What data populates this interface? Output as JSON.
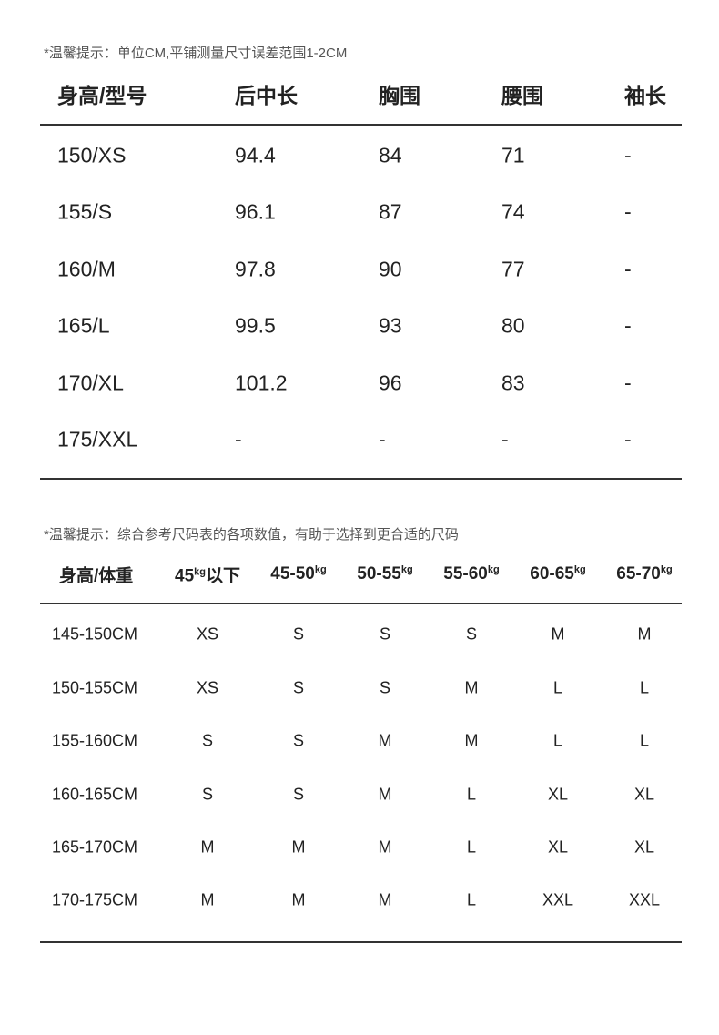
{
  "table1": {
    "note": "*温馨提示：单位CM,平铺测量尺寸误差范围1-2CM",
    "headers": [
      "身高/型号",
      "后中长",
      "胸围",
      "腰围",
      "袖长"
    ],
    "rows": [
      [
        "150/XS",
        "94.4",
        "84",
        "71",
        "-"
      ],
      [
        "155/S",
        "96.1",
        "87",
        "74",
        "-"
      ],
      [
        "160/M",
        "97.8",
        "90",
        "77",
        "-"
      ],
      [
        "165/L",
        "99.5",
        "93",
        "80",
        "-"
      ],
      [
        "170/XL",
        "101.2",
        "96",
        "83",
        "-"
      ],
      [
        "175/XXL",
        "-",
        "-",
        "-",
        "-"
      ]
    ]
  },
  "table2": {
    "note": "*温馨提示：综合参考尺码表的各项数值，有助于选择到更合适的尺码",
    "headers": [
      {
        "main": "身高/体重",
        "unit": "",
        "suffix": ""
      },
      {
        "main": "45",
        "unit": "kg",
        "suffix": "以下"
      },
      {
        "main": "45-50",
        "unit": "kg",
        "suffix": ""
      },
      {
        "main": "50-55",
        "unit": "kg",
        "suffix": ""
      },
      {
        "main": "55-60",
        "unit": "kg",
        "suffix": ""
      },
      {
        "main": "60-65",
        "unit": "kg",
        "suffix": ""
      },
      {
        "main": "65-70",
        "unit": "kg",
        "suffix": ""
      }
    ],
    "rows": [
      [
        "145-150CM",
        "XS",
        "S",
        "S",
        "S",
        "M",
        "M"
      ],
      [
        "150-155CM",
        "XS",
        "S",
        "S",
        "M",
        "L",
        "L"
      ],
      [
        "155-160CM",
        "S",
        "S",
        "M",
        "M",
        "L",
        "L"
      ],
      [
        "160-165CM",
        "S",
        "S",
        "M",
        "L",
        "XL",
        "XL"
      ],
      [
        "165-170CM",
        "M",
        "M",
        "M",
        "L",
        "XL",
        "XL"
      ],
      [
        "170-175CM",
        "M",
        "M",
        "M",
        "L",
        "XXL",
        "XXL"
      ]
    ]
  }
}
